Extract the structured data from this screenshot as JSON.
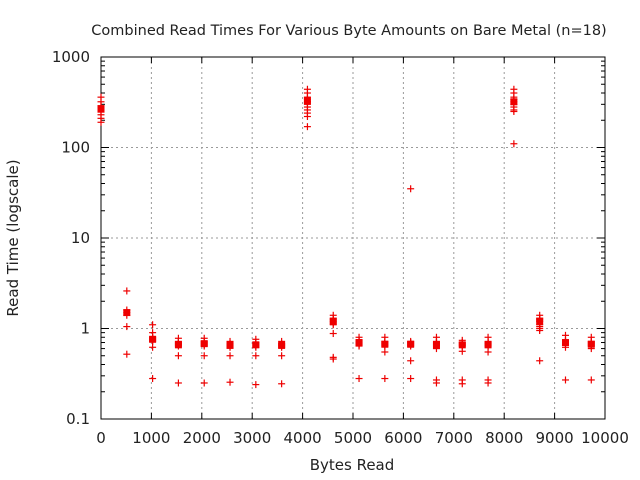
{
  "chart_data": {
    "type": "scatter",
    "title": "Combined Read Times For Various Byte Amounts on Bare Metal (n=18)",
    "xlabel": "Bytes Read",
    "ylabel": "Read Time (logscale)",
    "xlim": [
      0,
      10000
    ],
    "ylim": [
      0.1,
      1000
    ],
    "yscale": "log",
    "grid": true,
    "legend": "none",
    "marker_color": "#ee0000",
    "x_ticks": [
      {
        "value": 0,
        "label": "0"
      },
      {
        "value": 1000,
        "label": "1000"
      },
      {
        "value": 2000,
        "label": "2000"
      },
      {
        "value": 3000,
        "label": "3000"
      },
      {
        "value": 4000,
        "label": "4000"
      },
      {
        "value": 5000,
        "label": "5000"
      },
      {
        "value": 6000,
        "label": "6000"
      },
      {
        "value": 7000,
        "label": "7000"
      },
      {
        "value": 8000,
        "label": "8000"
      },
      {
        "value": 9000,
        "label": "9000"
      },
      {
        "value": 10000,
        "label": "10000"
      }
    ],
    "y_ticks": [
      {
        "value": 0.1,
        "label": "0.1"
      },
      {
        "value": 1,
        "label": "1"
      },
      {
        "value": 10,
        "label": "10"
      },
      {
        "value": 100,
        "label": "100"
      },
      {
        "value": 1000,
        "label": "1000"
      }
    ],
    "points": [
      {
        "x": 0,
        "ys": [
          360,
          320,
          290,
          270,
          250,
          230,
          210,
          190
        ]
      },
      {
        "x": 512,
        "ys": [
          2.6,
          1.6,
          1.5,
          1.4,
          1.05,
          0.52
        ]
      },
      {
        "x": 1024,
        "ys": [
          1.1,
          0.9,
          0.8,
          0.78,
          0.76,
          0.74,
          0.72,
          0.62,
          0.28
        ]
      },
      {
        "x": 1536,
        "ys": [
          0.78,
          0.72,
          0.7,
          0.68,
          0.66,
          0.64,
          0.5,
          0.25
        ]
      },
      {
        "x": 2048,
        "ys": [
          0.78,
          0.72,
          0.7,
          0.68,
          0.66,
          0.64,
          0.5,
          0.25
        ]
      },
      {
        "x": 2560,
        "ys": [
          0.72,
          0.68,
          0.66,
          0.64,
          0.62,
          0.5,
          0.255
        ]
      },
      {
        "x": 3072,
        "ys": [
          0.76,
          0.7,
          0.68,
          0.66,
          0.64,
          0.62,
          0.5,
          0.24
        ]
      },
      {
        "x": 3584,
        "ys": [
          0.72,
          0.68,
          0.66,
          0.64,
          0.62,
          0.5,
          0.245
        ]
      },
      {
        "x": 4096,
        "ys": [
          440,
          400,
          360,
          340,
          320,
          300,
          280,
          260,
          240,
          220,
          170
        ]
      },
      {
        "x": 4608,
        "ys": [
          1.4,
          1.3,
          1.25,
          1.2,
          1.15,
          1.1,
          0.88,
          0.48,
          0.46
        ]
      },
      {
        "x": 5120,
        "ys": [
          0.8,
          0.74,
          0.72,
          0.7,
          0.68,
          0.66,
          0.64,
          0.28
        ]
      },
      {
        "x": 5632,
        "ys": [
          0.8,
          0.72,
          0.7,
          0.68,
          0.66,
          0.64,
          0.55,
          0.28
        ]
      },
      {
        "x": 6144,
        "ys": [
          35,
          0.72,
          0.7,
          0.68,
          0.66,
          0.64,
          0.44,
          0.28
        ]
      },
      {
        "x": 6656,
        "ys": [
          0.8,
          0.72,
          0.7,
          0.68,
          0.66,
          0.64,
          0.6,
          0.27,
          0.25
        ]
      },
      {
        "x": 7168,
        "ys": [
          0.74,
          0.7,
          0.68,
          0.66,
          0.64,
          0.56,
          0.27,
          0.245
        ]
      },
      {
        "x": 7680,
        "ys": [
          0.8,
          0.72,
          0.7,
          0.68,
          0.66,
          0.64,
          0.55,
          0.27,
          0.25
        ]
      },
      {
        "x": 8192,
        "ys": [
          440,
          400,
          360,
          340,
          320,
          300,
          280,
          260,
          250,
          110
        ]
      },
      {
        "x": 8704,
        "ys": [
          1.4,
          1.3,
          1.25,
          1.2,
          1.1,
          1.05,
          1.0,
          0.95,
          0.44
        ]
      },
      {
        "x": 9216,
        "ys": [
          0.84,
          0.74,
          0.72,
          0.7,
          0.68,
          0.66,
          0.62,
          0.27
        ]
      },
      {
        "x": 9728,
        "ys": [
          0.8,
          0.72,
          0.7,
          0.68,
          0.66,
          0.64,
          0.6,
          0.27
        ]
      }
    ],
    "means": [
      {
        "x": 0,
        "y": 265
      },
      {
        "x": 512,
        "y": 1.5
      },
      {
        "x": 1024,
        "y": 0.76
      },
      {
        "x": 1536,
        "y": 0.66
      },
      {
        "x": 2048,
        "y": 0.68
      },
      {
        "x": 2560,
        "y": 0.65
      },
      {
        "x": 3072,
        "y": 0.66
      },
      {
        "x": 3584,
        "y": 0.65
      },
      {
        "x": 4096,
        "y": 330
      },
      {
        "x": 4608,
        "y": 1.2
      },
      {
        "x": 5120,
        "y": 0.7
      },
      {
        "x": 5632,
        "y": 0.67
      },
      {
        "x": 6144,
        "y": 0.67
      },
      {
        "x": 6656,
        "y": 0.66
      },
      {
        "x": 7168,
        "y": 0.66
      },
      {
        "x": 7680,
        "y": 0.66
      },
      {
        "x": 8192,
        "y": 320
      },
      {
        "x": 8704,
        "y": 1.2
      },
      {
        "x": 9216,
        "y": 0.7
      },
      {
        "x": 9728,
        "y": 0.67
      }
    ]
  }
}
